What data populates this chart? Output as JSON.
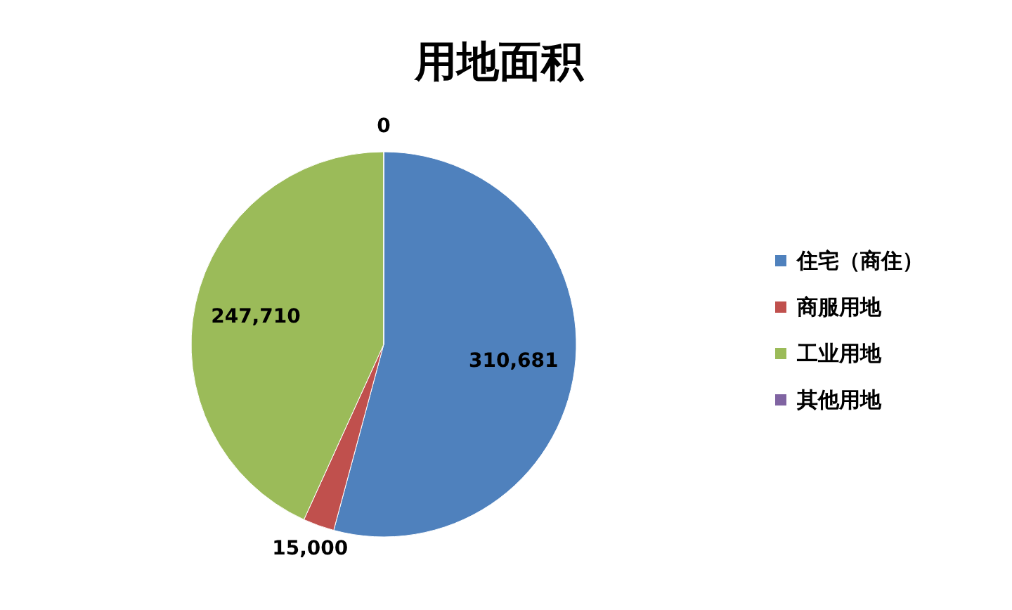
{
  "chart_data": {
    "type": "pie",
    "title": "用地面积",
    "categories": [
      "住宅（商住）",
      "商服用地",
      "工业用地",
      "其他用地"
    ],
    "values": [
      310681,
      15000,
      247710,
      0
    ],
    "value_labels": [
      "310,681",
      "15,000",
      "247,710",
      "0"
    ],
    "colors": [
      "#4f81bd",
      "#c0504d",
      "#9bbb59",
      "#8064a2"
    ],
    "legend": "right"
  }
}
